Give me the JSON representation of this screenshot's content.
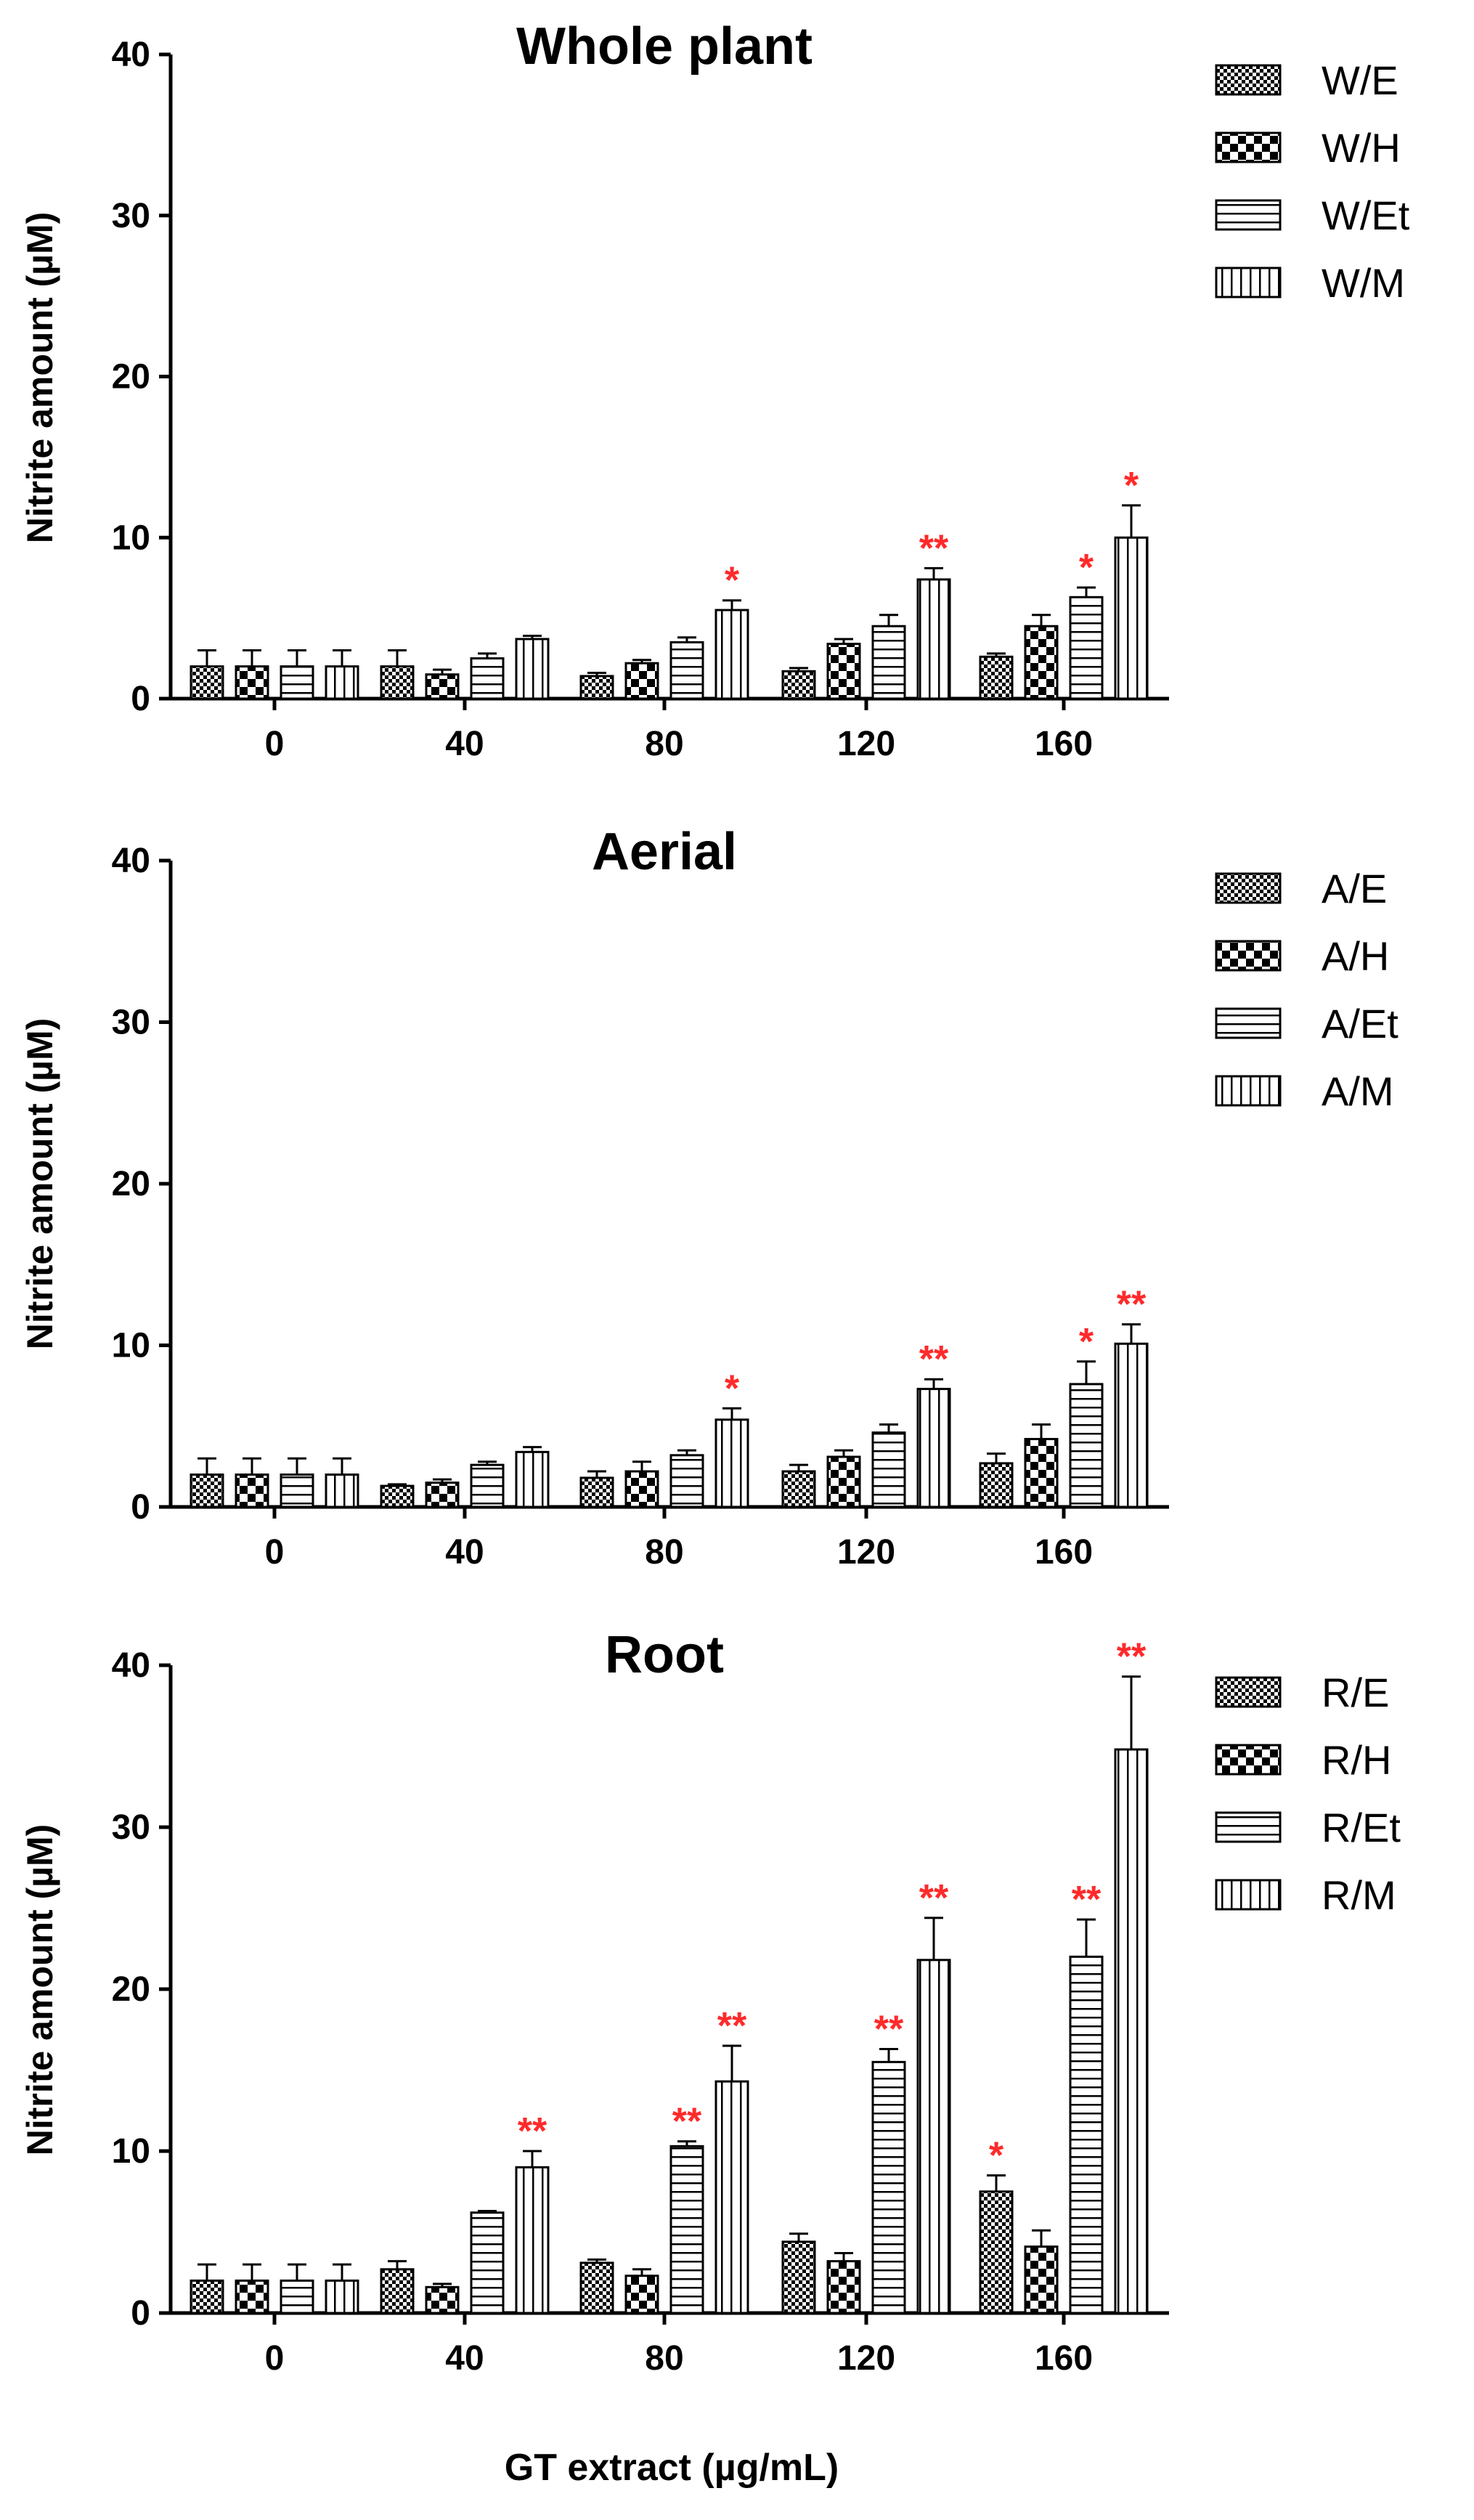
{
  "colors": {
    "axis": "#000000",
    "significance": "#ff2a2a",
    "background": "#ffffff"
  },
  "xlabel": "GT extract (µg/mL)",
  "chart_data": [
    {
      "type": "bar",
      "title": "Whole plant",
      "ylabel": "Nitrite amount (µM)",
      "ylim": [
        0,
        40
      ],
      "yticks": [
        0,
        10,
        20,
        30,
        40
      ],
      "categories": [
        "0",
        "40",
        "80",
        "120",
        "160"
      ],
      "series": [
        {
          "name": "W/E",
          "pattern": "fine-check",
          "values": [
            2.0,
            2.0,
            1.4,
            1.7,
            2.6
          ],
          "errors": [
            1.0,
            1.0,
            0.2,
            0.2,
            0.2
          ],
          "sig": [
            "",
            "",
            "",
            "",
            ""
          ]
        },
        {
          "name": "W/H",
          "pattern": "coarse-check",
          "values": [
            2.0,
            1.5,
            2.2,
            3.4,
            4.5
          ],
          "errors": [
            1.0,
            0.3,
            0.2,
            0.3,
            0.7
          ],
          "sig": [
            "",
            "",
            "",
            "",
            ""
          ]
        },
        {
          "name": "W/Et",
          "pattern": "horizontal",
          "values": [
            2.0,
            2.5,
            3.5,
            4.5,
            6.3
          ],
          "errors": [
            1.0,
            0.3,
            0.3,
            0.7,
            0.6
          ],
          "sig": [
            "",
            "",
            "",
            "",
            "*"
          ]
        },
        {
          "name": "W/M",
          "pattern": "vertical",
          "values": [
            2.0,
            3.7,
            5.5,
            7.4,
            10.0
          ],
          "errors": [
            1.0,
            0.2,
            0.6,
            0.7,
            2.0
          ],
          "sig": [
            "",
            "",
            "*",
            "**",
            "*"
          ]
        }
      ]
    },
    {
      "type": "bar",
      "title": "Aerial",
      "ylabel": "Nitrite amount (µM)",
      "ylim": [
        0,
        40
      ],
      "yticks": [
        0,
        10,
        20,
        30,
        40
      ],
      "categories": [
        "0",
        "40",
        "80",
        "120",
        "160"
      ],
      "series": [
        {
          "name": "A/E",
          "pattern": "fine-check",
          "values": [
            2.0,
            1.3,
            1.8,
            2.2,
            2.7
          ],
          "errors": [
            1.0,
            0.1,
            0.4,
            0.4,
            0.6
          ],
          "sig": [
            "",
            "",
            "",
            "",
            ""
          ]
        },
        {
          "name": "A/H",
          "pattern": "coarse-check",
          "values": [
            2.0,
            1.5,
            2.2,
            3.1,
            4.2
          ],
          "errors": [
            1.0,
            0.2,
            0.6,
            0.4,
            0.9
          ],
          "sig": [
            "",
            "",
            "",
            "",
            ""
          ]
        },
        {
          "name": "A/Et",
          "pattern": "horizontal",
          "values": [
            2.0,
            2.6,
            3.2,
            4.6,
            7.6
          ],
          "errors": [
            1.0,
            0.2,
            0.3,
            0.5,
            1.4
          ],
          "sig": [
            "",
            "",
            "",
            "",
            "*"
          ]
        },
        {
          "name": "A/M",
          "pattern": "vertical",
          "values": [
            2.0,
            3.4,
            5.4,
            7.3,
            10.1
          ],
          "errors": [
            1.0,
            0.3,
            0.7,
            0.6,
            1.2
          ],
          "sig": [
            "",
            "",
            "*",
            "**",
            "**"
          ]
        }
      ]
    },
    {
      "type": "bar",
      "title": "Root",
      "ylabel": "Nitrite amount (µM)",
      "ylim": [
        0,
        40
      ],
      "yticks": [
        0,
        10,
        20,
        30,
        40
      ],
      "categories": [
        "0",
        "40",
        "80",
        "120",
        "160"
      ],
      "series": [
        {
          "name": "R/E",
          "pattern": "fine-check",
          "values": [
            2.0,
            2.7,
            3.1,
            4.4,
            7.5
          ],
          "errors": [
            1.0,
            0.5,
            0.2,
            0.5,
            1.0
          ],
          "sig": [
            "",
            "",
            "",
            "",
            "*"
          ]
        },
        {
          "name": "R/H",
          "pattern": "coarse-check",
          "values": [
            2.0,
            1.6,
            2.3,
            3.2,
            4.1
          ],
          "errors": [
            1.0,
            0.2,
            0.4,
            0.5,
            1.0
          ],
          "sig": [
            "",
            "",
            "",
            "",
            ""
          ]
        },
        {
          "name": "R/Et",
          "pattern": "horizontal",
          "values": [
            2.0,
            6.2,
            10.3,
            15.5,
            22.0
          ],
          "errors": [
            1.0,
            0.1,
            0.3,
            0.8,
            2.3
          ],
          "sig": [
            "",
            "",
            "**",
            "**",
            "**"
          ]
        },
        {
          "name": "R/M",
          "pattern": "vertical",
          "values": [
            2.0,
            9.0,
            14.3,
            21.8,
            34.8
          ],
          "errors": [
            1.0,
            1.0,
            2.2,
            2.6,
            4.5
          ],
          "sig": [
            "",
            "**",
            "**",
            "**",
            "**"
          ]
        }
      ]
    }
  ]
}
